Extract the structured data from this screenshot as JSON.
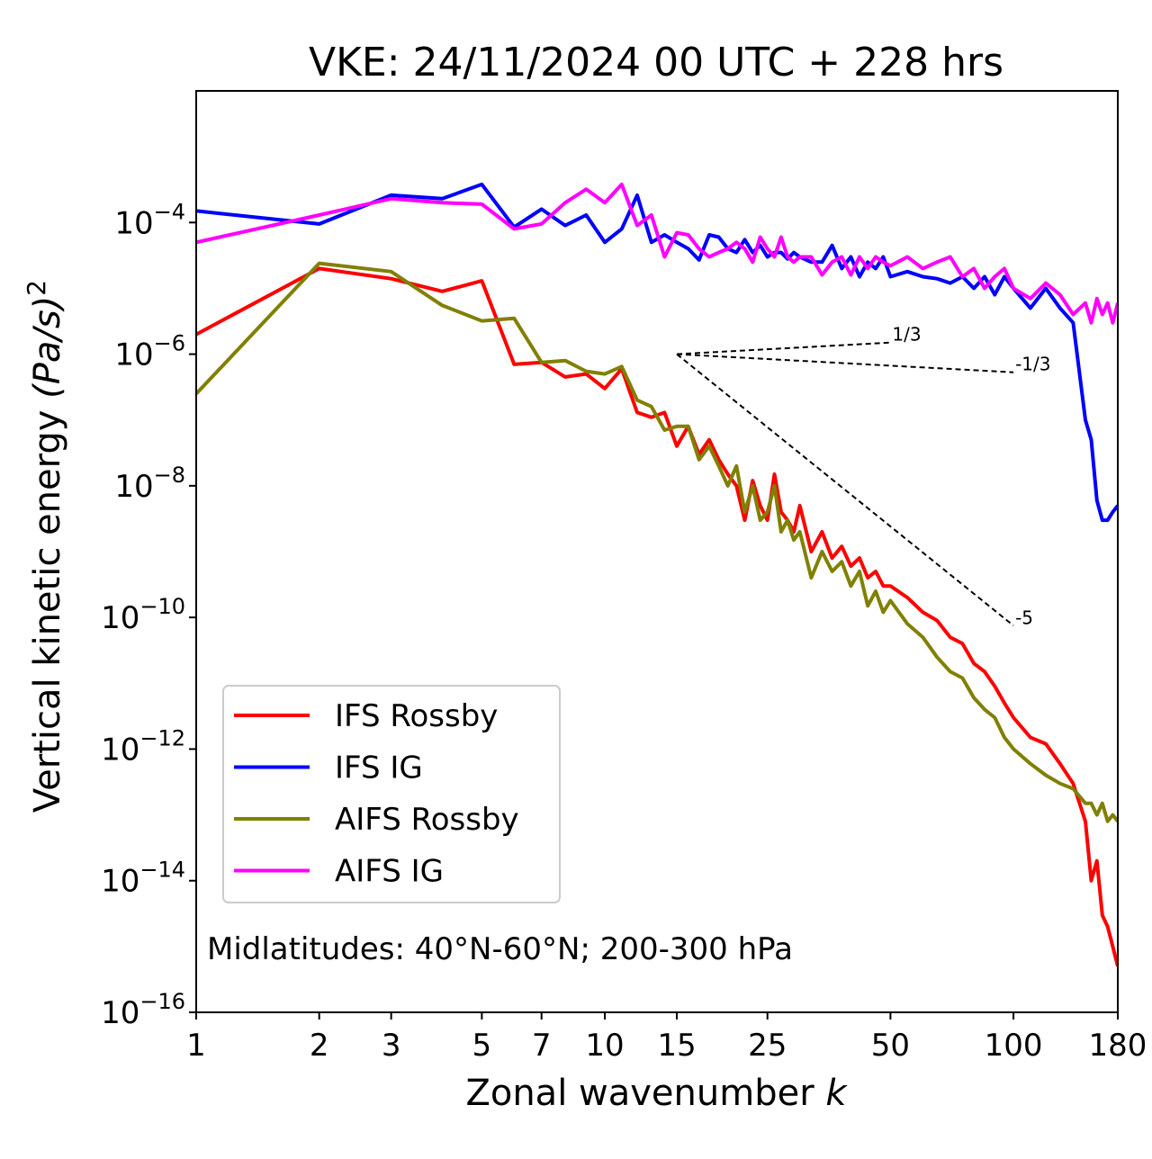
{
  "chart_data": {
    "type": "line",
    "title": "VKE: 24/11/2024 00 UTC + 228 hrs",
    "xlabel": "Zonal wavenumber",
    "xlabel_var": "k",
    "ylabel": "Vertical kinetic energy",
    "ylabel_unit": "(Pa/s)",
    "ylabel_exp": "2",
    "xscale": "log",
    "yscale": "log",
    "xlim": [
      1,
      180
    ],
    "ylim": [
      1e-16,
      0.01
    ],
    "x_ticks": [
      1,
      2,
      3,
      5,
      7,
      10,
      15,
      25,
      50,
      100,
      180
    ],
    "y_ticks": [
      {
        "value": 1e-16,
        "base": "10",
        "exp": "−16"
      },
      {
        "value": 1e-14,
        "base": "10",
        "exp": "−14"
      },
      {
        "value": 1e-12,
        "base": "10",
        "exp": "−12"
      },
      {
        "value": 1e-10,
        "base": "10",
        "exp": "−10"
      },
      {
        "value": 1e-08,
        "base": "10",
        "exp": "−8"
      },
      {
        "value": 1e-06,
        "base": "10",
        "exp": "−6"
      },
      {
        "value": 0.0001,
        "base": "10",
        "exp": "−4"
      }
    ],
    "legend_position": "lower-left",
    "annotation": "Midlatitudes: 40°N-60°N; 200-300 hPa",
    "reference_slopes": [
      {
        "label": "1/3",
        "from": [
          15,
          1e-06
        ],
        "to": [
          50,
          1.5e-06
        ]
      },
      {
        "label": "-1/3",
        "from": [
          15,
          1e-06
        ],
        "to": [
          100,
          5.3e-07
        ]
      },
      {
        "label": "-5",
        "from": [
          15,
          1e-06
        ],
        "to": [
          100,
          7.5e-11
        ]
      }
    ],
    "series": [
      {
        "name": "IFS Rossby",
        "color": "#ff0000",
        "x": [
          1,
          2,
          3,
          4,
          5,
          6,
          7,
          8,
          9,
          10,
          11,
          12,
          13,
          14,
          15,
          16,
          17,
          18,
          19,
          20,
          21,
          22,
          23,
          24,
          25,
          26,
          27,
          28,
          29,
          30,
          32,
          34,
          36,
          38,
          40,
          42,
          44,
          46,
          48,
          50,
          55,
          60,
          65,
          70,
          75,
          80,
          85,
          90,
          95,
          100,
          110,
          120,
          130,
          140,
          150,
          155,
          160,
          165,
          170,
          175,
          180
        ],
        "y": [
          2e-06,
          2e-05,
          1.4e-05,
          9e-06,
          1.3e-05,
          7e-07,
          7.5e-07,
          4.5e-07,
          5e-07,
          3e-07,
          6e-07,
          1.3e-07,
          1.1e-07,
          1.3e-07,
          4e-08,
          8e-08,
          3e-08,
          5e-08,
          2.5e-08,
          1.5e-08,
          1e-08,
          3e-09,
          1.2e-08,
          5e-09,
          3e-09,
          1.5e-08,
          4e-09,
          3e-09,
          2e-09,
          5e-09,
          1e-09,
          2e-09,
          8e-10,
          1.2e-09,
          6e-10,
          8e-10,
          4e-10,
          5e-10,
          3e-10,
          3e-10,
          2e-10,
          1.2e-10,
          9e-11,
          5e-11,
          4e-11,
          2e-11,
          1.5e-11,
          9e-12,
          5e-12,
          3e-12,
          1.5e-12,
          1.2e-12,
          6e-13,
          3e-13,
          8e-14,
          1e-14,
          2e-14,
          3e-15,
          2e-15,
          1e-15,
          5e-16
        ]
      },
      {
        "name": "IFS IG",
        "color": "#0000ff",
        "x": [
          1,
          2,
          3,
          4,
          5,
          6,
          7,
          8,
          9,
          10,
          11,
          12,
          13,
          14,
          15,
          16,
          17,
          18,
          19,
          20,
          21,
          22,
          23,
          24,
          25,
          26,
          27,
          28,
          29,
          30,
          32,
          34,
          36,
          38,
          40,
          42,
          44,
          46,
          48,
          50,
          55,
          60,
          65,
          70,
          75,
          80,
          85,
          90,
          95,
          100,
          110,
          120,
          130,
          140,
          150,
          155,
          160,
          165,
          170,
          175,
          180
        ],
        "y": [
          0.00015,
          9.5e-05,
          0.00026,
          0.00023,
          0.00038,
          8.5e-05,
          0.00016,
          9e-05,
          0.00013,
          5e-05,
          8e-05,
          0.00026,
          5e-05,
          6.5e-05,
          5e-05,
          4e-05,
          2.7e-05,
          6.5e-05,
          6e-05,
          4e-05,
          3.5e-05,
          5.5e-05,
          3.5e-05,
          4.5e-05,
          3e-05,
          3.5e-05,
          3.5e-05,
          2.8e-05,
          3.5e-05,
          3e-05,
          2.5e-05,
          2.5e-05,
          4.5e-05,
          2e-05,
          3e-05,
          1.5e-05,
          2.5e-05,
          2e-05,
          3e-05,
          1.5e-05,
          1.8e-05,
          1.5e-05,
          1.4e-05,
          1.2e-05,
          1.5e-05,
          1e-05,
          1.5e-05,
          8e-06,
          1.5e-05,
          1e-05,
          5e-06,
          1e-05,
          5e-06,
          3e-06,
          1e-07,
          5e-08,
          6e-09,
          3e-09,
          3e-09,
          4e-09,
          5e-09
        ]
      },
      {
        "name": "AIFS Rossby",
        "color": "#808000",
        "x": [
          1,
          2,
          3,
          4,
          5,
          6,
          7,
          8,
          9,
          10,
          11,
          12,
          13,
          14,
          15,
          16,
          17,
          18,
          19,
          20,
          21,
          22,
          23,
          24,
          25,
          26,
          27,
          28,
          29,
          30,
          32,
          34,
          36,
          38,
          40,
          42,
          44,
          46,
          48,
          50,
          55,
          60,
          65,
          70,
          75,
          80,
          85,
          90,
          95,
          100,
          110,
          120,
          130,
          140,
          150,
          155,
          160,
          165,
          170,
          175,
          180
        ],
        "y": [
          2.5e-07,
          2.4e-05,
          1.8e-05,
          5.5e-06,
          3.2e-06,
          3.5e-06,
          7.5e-07,
          8e-07,
          5.5e-07,
          5e-07,
          6.5e-07,
          2e-07,
          1.6e-07,
          7e-08,
          8e-08,
          8e-08,
          2.5e-08,
          4e-08,
          2e-08,
          1e-08,
          2e-08,
          4e-09,
          1e-08,
          3e-09,
          4e-09,
          1e-08,
          2e-09,
          3e-09,
          1.5e-09,
          2e-09,
          4e-10,
          1e-09,
          5e-10,
          7e-10,
          3e-10,
          5e-10,
          1.5e-10,
          2.5e-10,
          1.2e-10,
          1.8e-10,
          8e-11,
          5e-11,
          2.5e-11,
          1.5e-11,
          1.2e-11,
          6e-12,
          4e-12,
          3e-12,
          1.5e-12,
          1e-12,
          6e-13,
          4e-13,
          3e-13,
          2.5e-13,
          1.5e-13,
          1.5e-13,
          1e-13,
          1.5e-13,
          8e-14,
          1e-13,
          8e-14
        ]
      },
      {
        "name": "AIFS IG",
        "color": "#ff00ff",
        "x": [
          1,
          2,
          3,
          4,
          5,
          6,
          7,
          8,
          9,
          10,
          11,
          12,
          13,
          14,
          15,
          16,
          17,
          18,
          19,
          20,
          21,
          22,
          23,
          24,
          25,
          26,
          27,
          28,
          29,
          30,
          32,
          34,
          36,
          38,
          40,
          42,
          44,
          46,
          48,
          50,
          55,
          60,
          65,
          70,
          75,
          80,
          85,
          90,
          95,
          100,
          110,
          120,
          130,
          140,
          150,
          155,
          160,
          165,
          170,
          175,
          180
        ],
        "y": [
          5e-05,
          0.00013,
          0.00023,
          0.0002,
          0.00019,
          8e-05,
          9.5e-05,
          0.0002,
          0.00032,
          0.0002,
          0.00038,
          9e-05,
          0.00013,
          3e-05,
          7e-05,
          6.5e-05,
          4e-05,
          3e-05,
          3.5e-05,
          4e-05,
          5e-05,
          4e-05,
          2.5e-05,
          6e-05,
          4e-05,
          3e-05,
          6e-05,
          3e-05,
          2.5e-05,
          3e-05,
          3e-05,
          1.6e-05,
          2.5e-05,
          3e-05,
          1.6e-05,
          3e-05,
          2e-05,
          3e-05,
          2.5e-05,
          2.2e-05,
          3e-05,
          2e-05,
          2.5e-05,
          3e-05,
          1.5e-05,
          2e-05,
          1e-05,
          1.5e-05,
          2e-05,
          1e-05,
          7e-06,
          1.2e-05,
          8e-06,
          4e-06,
          6e-06,
          3e-06,
          7e-06,
          4e-06,
          6e-06,
          3e-06,
          6e-06
        ]
      }
    ]
  }
}
